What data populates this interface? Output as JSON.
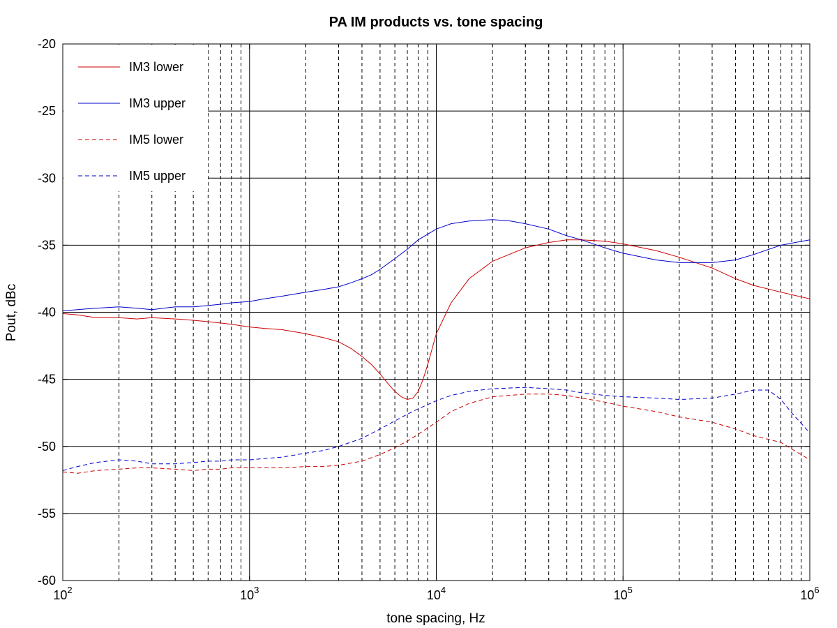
{
  "chart_data": {
    "type": "line",
    "title": "PA IM products vs. tone spacing",
    "xlabel": "tone spacing, Hz",
    "ylabel": "Pout, dBc",
    "xscale": "log",
    "xlim": [
      100,
      1000000
    ],
    "ylim": [
      -60,
      -20
    ],
    "x_tick_labels": [
      {
        "base": "10",
        "exp": "2"
      },
      {
        "base": "10",
        "exp": "3"
      },
      {
        "base": "10",
        "exp": "4"
      },
      {
        "base": "10",
        "exp": "5"
      },
      {
        "base": "10",
        "exp": "6"
      }
    ],
    "y_ticks": [
      -60,
      -55,
      -50,
      -45,
      -40,
      -35,
      -30,
      -25,
      -20
    ],
    "grid": "major solid, minor dashed",
    "legend_position": "top-left",
    "series": [
      {
        "name": "IM3 lower",
        "color": "#cc0000",
        "dash": "solid",
        "x": [
          100,
          120,
          150,
          200,
          250,
          300,
          400,
          500,
          600,
          700,
          800,
          1000,
          1200,
          1500,
          2000,
          2500,
          3000,
          3500,
          4000,
          4500,
          5000,
          5500,
          6000,
          6500,
          7000,
          7500,
          8000,
          8500,
          9000,
          10000,
          12000,
          15000,
          20000,
          30000,
          40000,
          50000,
          60000,
          80000,
          100000,
          150000,
          200000,
          300000,
          400000,
          500000,
          700000,
          1000000
        ],
        "y": [
          -40.1,
          -40.2,
          -40.4,
          -40.4,
          -40.5,
          -40.4,
          -40.5,
          -40.6,
          -40.7,
          -40.8,
          -40.9,
          -41.1,
          -41.2,
          -41.3,
          -41.6,
          -41.9,
          -42.2,
          -42.7,
          -43.3,
          -43.9,
          -44.6,
          -45.3,
          -45.9,
          -46.3,
          -46.5,
          -46.4,
          -45.9,
          -45.0,
          -43.9,
          -41.6,
          -39.3,
          -37.5,
          -36.2,
          -35.2,
          -34.8,
          -34.6,
          -34.6,
          -34.7,
          -34.9,
          -35.4,
          -35.9,
          -36.7,
          -37.5,
          -38.0,
          -38.5,
          -39.0
        ]
      },
      {
        "name": "IM3 upper",
        "color": "#0000cc",
        "dash": "solid",
        "x": [
          100,
          120,
          150,
          200,
          250,
          300,
          400,
          500,
          600,
          700,
          800,
          1000,
          1200,
          1500,
          2000,
          2500,
          3000,
          3500,
          4000,
          4500,
          5000,
          6000,
          7000,
          8000,
          10000,
          12000,
          15000,
          20000,
          25000,
          30000,
          40000,
          50000,
          60000,
          80000,
          100000,
          150000,
          200000,
          250000,
          300000,
          400000,
          500000,
          700000,
          1000000
        ],
        "y": [
          -39.9,
          -39.8,
          -39.7,
          -39.6,
          -39.7,
          -39.8,
          -39.6,
          -39.6,
          -39.5,
          -39.4,
          -39.3,
          -39.2,
          -39.0,
          -38.8,
          -38.5,
          -38.3,
          -38.1,
          -37.8,
          -37.5,
          -37.2,
          -36.8,
          -36.0,
          -35.3,
          -34.6,
          -33.8,
          -33.4,
          -33.2,
          -33.1,
          -33.2,
          -33.4,
          -33.8,
          -34.3,
          -34.6,
          -35.2,
          -35.6,
          -36.1,
          -36.3,
          -36.3,
          -36.3,
          -36.1,
          -35.7,
          -35.0,
          -34.6
        ]
      },
      {
        "name": "IM5 lower",
        "color": "#cc0000",
        "dash": "dashed",
        "x": [
          100,
          120,
          150,
          200,
          250,
          300,
          400,
          500,
          600,
          700,
          800,
          1000,
          1200,
          1500,
          2000,
          2500,
          3000,
          4000,
          5000,
          6000,
          7000,
          8000,
          10000,
          12000,
          15000,
          20000,
          30000,
          40000,
          50000,
          60000,
          80000,
          100000,
          150000,
          200000,
          300000,
          400000,
          500000,
          700000,
          1000000
        ],
        "y": [
          -51.9,
          -52.0,
          -51.8,
          -51.7,
          -51.6,
          -51.6,
          -51.7,
          -51.8,
          -51.7,
          -51.7,
          -51.6,
          -51.6,
          -51.6,
          -51.6,
          -51.5,
          -51.5,
          -51.4,
          -51.1,
          -50.6,
          -50.1,
          -49.6,
          -49.1,
          -48.2,
          -47.4,
          -46.8,
          -46.3,
          -46.1,
          -46.1,
          -46.2,
          -46.4,
          -46.7,
          -47.0,
          -47.4,
          -47.8,
          -48.2,
          -48.7,
          -49.2,
          -49.7,
          -51.0
        ]
      },
      {
        "name": "IM5 upper",
        "color": "#0000cc",
        "dash": "dashed",
        "x": [
          100,
          120,
          150,
          200,
          250,
          300,
          400,
          500,
          600,
          700,
          800,
          1000,
          1200,
          1500,
          2000,
          2500,
          3000,
          4000,
          5000,
          6000,
          7000,
          8000,
          10000,
          12000,
          15000,
          20000,
          30000,
          40000,
          50000,
          60000,
          80000,
          100000,
          150000,
          200000,
          300000,
          400000,
          500000,
          600000,
          700000,
          800000,
          1000000
        ],
        "y": [
          -51.8,
          -51.5,
          -51.2,
          -51.0,
          -51.1,
          -51.3,
          -51.3,
          -51.2,
          -51.1,
          -51.1,
          -51.0,
          -51.0,
          -50.9,
          -50.8,
          -50.5,
          -50.3,
          -50.0,
          -49.4,
          -48.7,
          -48.1,
          -47.6,
          -47.2,
          -46.6,
          -46.2,
          -45.9,
          -45.7,
          -45.6,
          -45.7,
          -45.8,
          -46.0,
          -46.2,
          -46.3,
          -46.4,
          -46.5,
          -46.4,
          -46.1,
          -45.8,
          -45.8,
          -46.5,
          -47.5,
          -49.0
        ]
      }
    ]
  }
}
